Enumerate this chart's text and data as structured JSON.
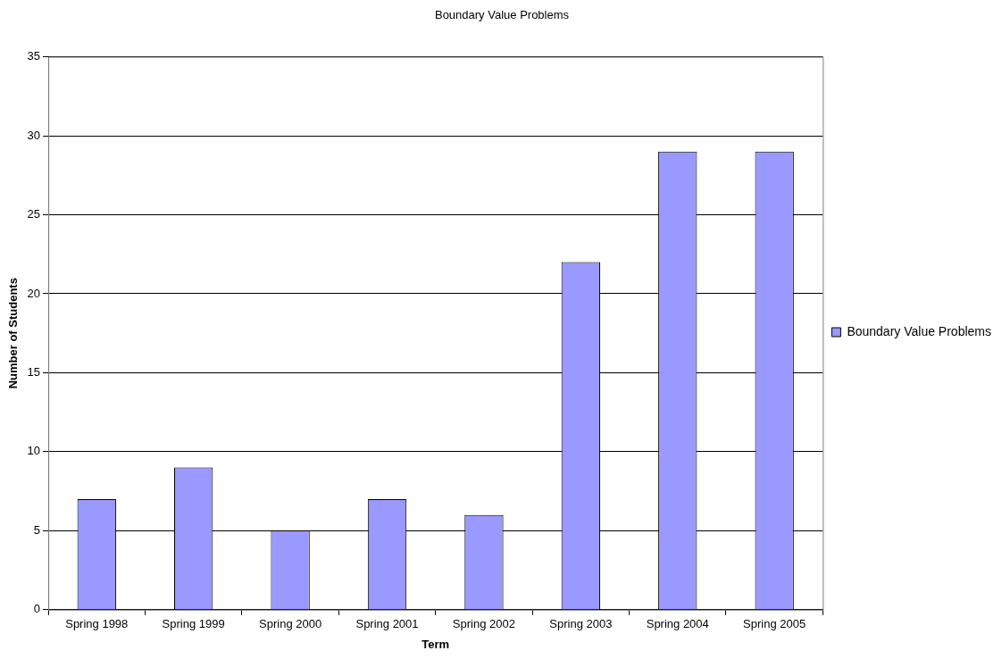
{
  "chart_data": {
    "type": "bar",
    "title": "Boundary Value Problems",
    "xlabel": "Term",
    "ylabel": "Number of Students",
    "categories": [
      "Spring 1998",
      "Spring 1999",
      "Spring 2000",
      "Spring 2001",
      "Spring 2002",
      "Spring 2003",
      "Spring 2004",
      "Spring 2005"
    ],
    "series": [
      {
        "name": "Boundary Value Problems",
        "color": "#9999ff",
        "values": [
          7,
          9,
          5,
          7,
          6,
          22,
          29,
          29
        ]
      }
    ],
    "ylim": [
      0,
      35
    ],
    "yticks": [
      0,
      5,
      10,
      15,
      20,
      25,
      30,
      35
    ],
    "grid": "y",
    "legend": "right"
  }
}
